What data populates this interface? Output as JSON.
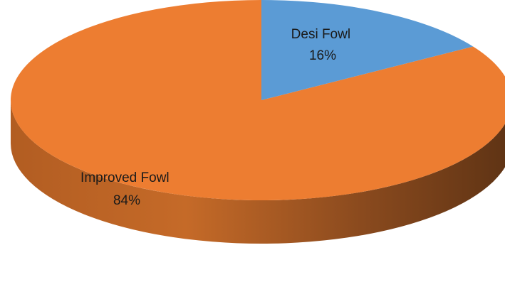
{
  "chart_data": {
    "type": "pie",
    "style": "3d",
    "title": "",
    "slices": [
      {
        "name": "Desi Fowl",
        "value": 16,
        "label": "16%",
        "color": "#5B9BD5"
      },
      {
        "name": "Improved Fowl",
        "value": 84,
        "label": "84%",
        "color": "#ED7D31"
      }
    ],
    "legend": "none",
    "data_labels": "category and percentage"
  }
}
